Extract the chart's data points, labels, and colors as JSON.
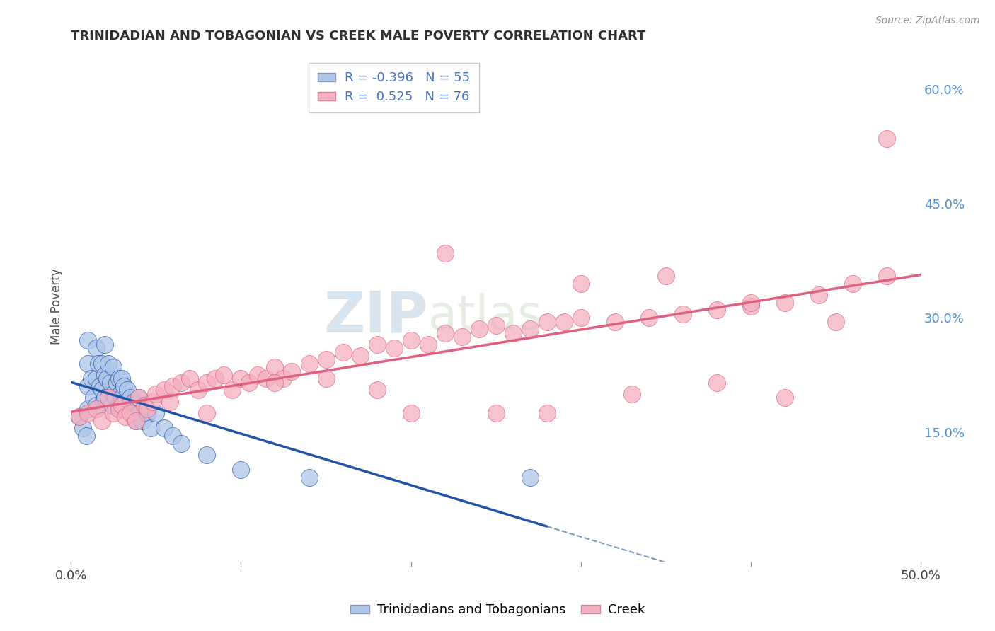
{
  "title": "TRINIDADIAN AND TOBAGONIAN VS CREEK MALE POVERTY CORRELATION CHART",
  "source_text": "Source: ZipAtlas.com",
  "ylabel": "Male Poverty",
  "xlim": [
    0.0,
    0.5
  ],
  "ylim": [
    -0.02,
    0.65
  ],
  "xticks": [
    0.0,
    0.1,
    0.2,
    0.3,
    0.4,
    0.5
  ],
  "xtick_labels": [
    "0.0%",
    "",
    "",
    "",
    "",
    "50.0%"
  ],
  "ytick_labels_right": [
    "15.0%",
    "30.0%",
    "45.0%",
    "60.0%"
  ],
  "yticks_right": [
    0.15,
    0.3,
    0.45,
    0.6
  ],
  "r_blue": -0.396,
  "n_blue": 55,
  "r_pink": 0.525,
  "n_pink": 76,
  "legend_label_blue": "Trinidadians and Tobagonians",
  "legend_label_pink": "Creek",
  "blue_color": "#aec6e8",
  "pink_color": "#f4afc0",
  "blue_line_color": "#2255aa",
  "pink_line_color": "#e06080",
  "watermark_zip": "ZIP",
  "watermark_atlas": "atlas",
  "background_color": "#ffffff",
  "grid_color": "#d0dde8",
  "blue_scatter_x": [
    0.005,
    0.007,
    0.009,
    0.01,
    0.01,
    0.01,
    0.01,
    0.012,
    0.013,
    0.015,
    0.015,
    0.015,
    0.016,
    0.017,
    0.018,
    0.018,
    0.019,
    0.02,
    0.02,
    0.02,
    0.021,
    0.022,
    0.022,
    0.023,
    0.024,
    0.025,
    0.025,
    0.026,
    0.027,
    0.028,
    0.028,
    0.029,
    0.03,
    0.03,
    0.031,
    0.032,
    0.033,
    0.034,
    0.035,
    0.036,
    0.037,
    0.038,
    0.04,
    0.04,
    0.042,
    0.045,
    0.047,
    0.05,
    0.055,
    0.06,
    0.065,
    0.08,
    0.1,
    0.14,
    0.27
  ],
  "blue_scatter_y": [
    0.17,
    0.155,
    0.145,
    0.27,
    0.24,
    0.21,
    0.18,
    0.22,
    0.195,
    0.26,
    0.22,
    0.185,
    0.24,
    0.21,
    0.24,
    0.205,
    0.19,
    0.265,
    0.225,
    0.195,
    0.22,
    0.24,
    0.195,
    0.215,
    0.185,
    0.235,
    0.2,
    0.195,
    0.215,
    0.22,
    0.185,
    0.2,
    0.22,
    0.195,
    0.21,
    0.19,
    0.205,
    0.185,
    0.195,
    0.175,
    0.19,
    0.165,
    0.195,
    0.175,
    0.165,
    0.175,
    0.155,
    0.175,
    0.155,
    0.145,
    0.135,
    0.12,
    0.1,
    0.09,
    0.09
  ],
  "pink_scatter_x": [
    0.005,
    0.01,
    0.015,
    0.018,
    0.022,
    0.025,
    0.028,
    0.03,
    0.032,
    0.035,
    0.038,
    0.04,
    0.043,
    0.045,
    0.048,
    0.05,
    0.055,
    0.058,
    0.06,
    0.065,
    0.07,
    0.075,
    0.08,
    0.085,
    0.09,
    0.095,
    0.1,
    0.105,
    0.11,
    0.115,
    0.12,
    0.125,
    0.13,
    0.14,
    0.15,
    0.16,
    0.17,
    0.18,
    0.19,
    0.2,
    0.21,
    0.22,
    0.23,
    0.24,
    0.25,
    0.26,
    0.27,
    0.28,
    0.29,
    0.3,
    0.32,
    0.34,
    0.36,
    0.38,
    0.4,
    0.42,
    0.44,
    0.46,
    0.48,
    0.22,
    0.3,
    0.35,
    0.4,
    0.45,
    0.28,
    0.18,
    0.08,
    0.12,
    0.15,
    0.2,
    0.25,
    0.33,
    0.42,
    0.38,
    0.48
  ],
  "pink_scatter_y": [
    0.17,
    0.175,
    0.18,
    0.165,
    0.195,
    0.175,
    0.18,
    0.185,
    0.17,
    0.175,
    0.165,
    0.195,
    0.185,
    0.18,
    0.19,
    0.2,
    0.205,
    0.19,
    0.21,
    0.215,
    0.22,
    0.205,
    0.215,
    0.22,
    0.225,
    0.205,
    0.22,
    0.215,
    0.225,
    0.22,
    0.235,
    0.22,
    0.23,
    0.24,
    0.245,
    0.255,
    0.25,
    0.265,
    0.26,
    0.27,
    0.265,
    0.28,
    0.275,
    0.285,
    0.29,
    0.28,
    0.285,
    0.295,
    0.295,
    0.3,
    0.295,
    0.3,
    0.305,
    0.31,
    0.315,
    0.32,
    0.33,
    0.345,
    0.355,
    0.385,
    0.345,
    0.355,
    0.32,
    0.295,
    0.175,
    0.205,
    0.175,
    0.215,
    0.22,
    0.175,
    0.175,
    0.2,
    0.195,
    0.215,
    0.535
  ]
}
